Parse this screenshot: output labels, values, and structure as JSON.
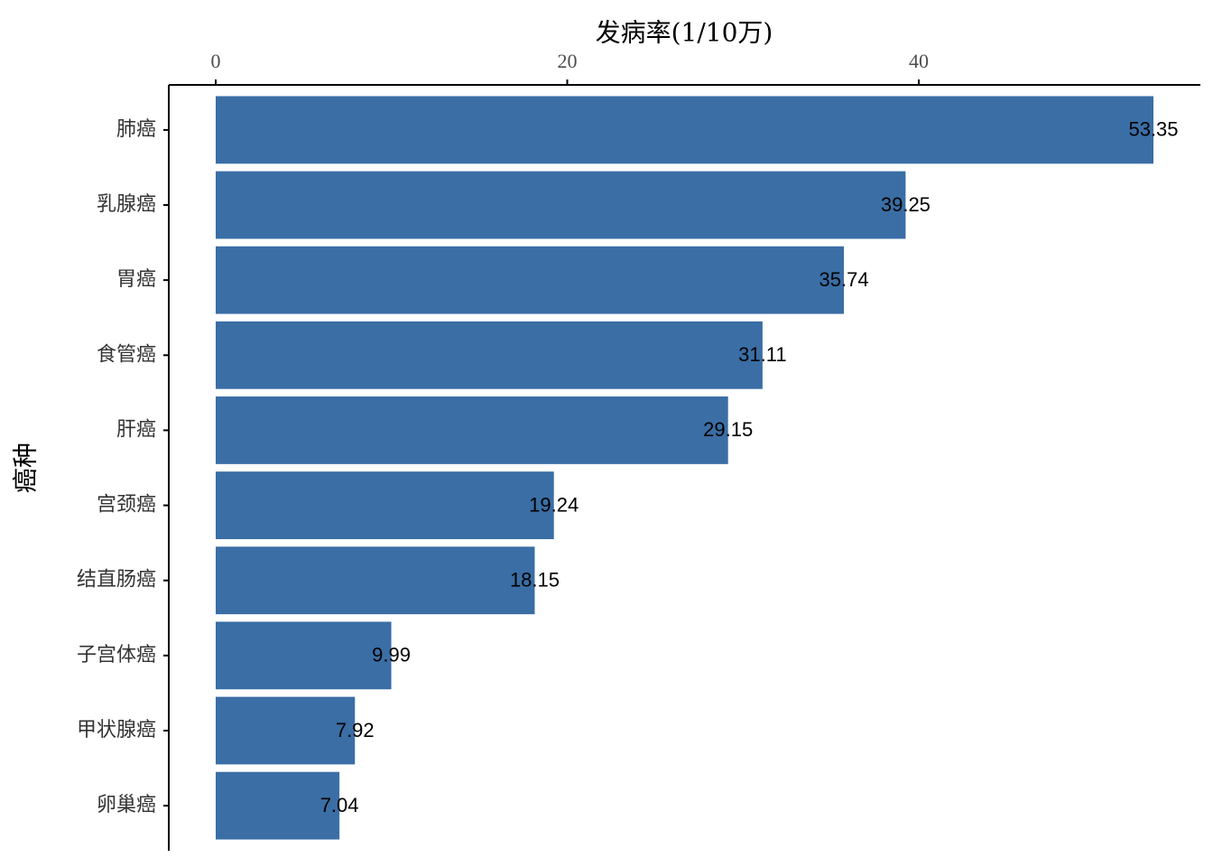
{
  "chart_data": {
    "type": "bar",
    "orientation": "horizontal",
    "x_label": "发病率(1/10万)",
    "y_label": "癌种",
    "categories": [
      "肺癌",
      "乳腺癌",
      "胃癌",
      "食管癌",
      "肝癌",
      "宫颈癌",
      "结直肠癌",
      "子宫体癌",
      "甲状腺癌",
      "卵巢癌"
    ],
    "values": [
      53.35,
      39.25,
      35.74,
      31.11,
      29.15,
      19.24,
      18.15,
      9.99,
      7.92,
      7.04
    ],
    "color": "#3a6ea5",
    "xlim": [
      -2.67,
      56.02
    ],
    "xticks": [
      0,
      20,
      40
    ]
  }
}
